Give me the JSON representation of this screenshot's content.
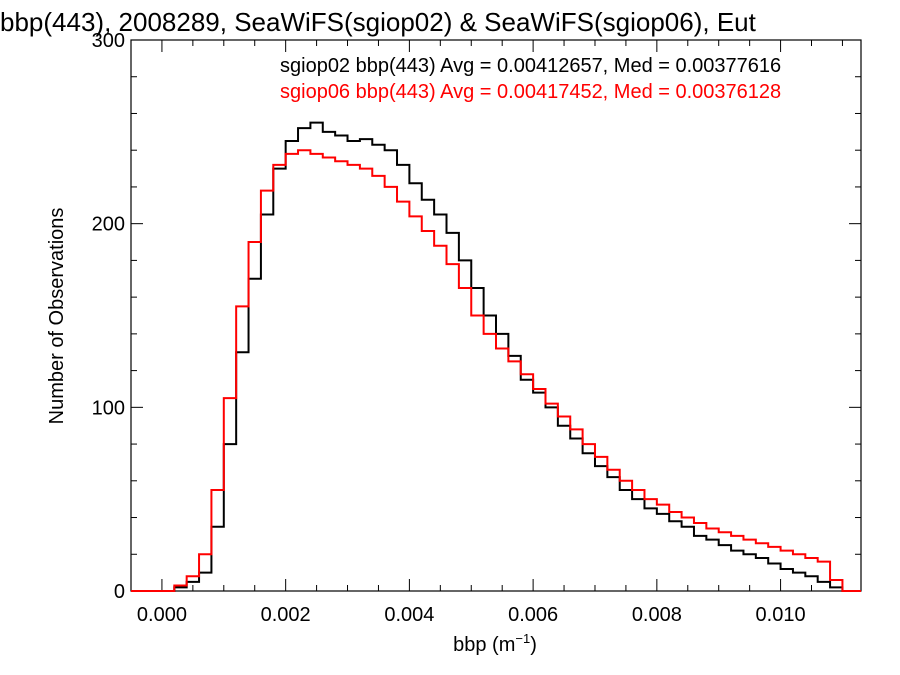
{
  "chart_data": {
    "type": "line",
    "title": "bbp(443), 2008289, SeaWiFS(sgiop02) & SeaWiFS(sgiop06), Eut",
    "xlabel": "bbp (m",
    "xlabel_sup": "−1",
    "xlabel_close": ")",
    "ylabel": "Number of Observations",
    "xlim": [
      -0.0005,
      0.0113
    ],
    "ylim": [
      0,
      300
    ],
    "x_ticks": [
      0.0,
      0.002,
      0.004,
      0.006,
      0.008,
      0.01
    ],
    "x_tick_labels": [
      "0.000",
      "0.002",
      "0.004",
      "0.006",
      "0.008",
      "0.010"
    ],
    "y_ticks": [
      0,
      100,
      200,
      300
    ],
    "y_tick_labels": [
      "0",
      "100",
      "200",
      "300"
    ],
    "grid": false,
    "legend_position": "top-right",
    "series": [
      {
        "name": "sgiop02",
        "legend_text": "sgiop02 bbp(443) Avg = 0.00412657, Med = 0.00377616",
        "color": "#000000",
        "x": [
          0.0,
          0.0002,
          0.0004,
          0.0006,
          0.0008,
          0.001,
          0.0012,
          0.0014,
          0.0016,
          0.0018,
          0.002,
          0.0022,
          0.0024,
          0.0026,
          0.0028,
          0.003,
          0.0032,
          0.0034,
          0.0036,
          0.0038,
          0.004,
          0.0042,
          0.0044,
          0.0046,
          0.0048,
          0.005,
          0.0052,
          0.0054,
          0.0056,
          0.0058,
          0.006,
          0.0062,
          0.0064,
          0.0066,
          0.0068,
          0.007,
          0.0072,
          0.0074,
          0.0076,
          0.0078,
          0.008,
          0.0082,
          0.0084,
          0.0086,
          0.0088,
          0.009,
          0.0092,
          0.0094,
          0.0096,
          0.0098,
          0.01,
          0.0102,
          0.0104,
          0.0106,
          0.0108,
          0.011
        ],
        "y": [
          0,
          2,
          5,
          10,
          35,
          80,
          130,
          170,
          205,
          230,
          245,
          252,
          255,
          250,
          248,
          245,
          246,
          243,
          240,
          232,
          222,
          213,
          205,
          195,
          180,
          165,
          150,
          140,
          128,
          115,
          108,
          100,
          90,
          83,
          75,
          68,
          62,
          55,
          50,
          45,
          42,
          38,
          35,
          30,
          28,
          25,
          22,
          20,
          18,
          15,
          12,
          10,
          8,
          5,
          2,
          0
        ]
      },
      {
        "name": "sgiop06",
        "legend_text": "sgiop06 bbp(443) Avg = 0.00417452, Med = 0.00376128",
        "color": "#ff0000",
        "x": [
          0.0,
          0.0002,
          0.0004,
          0.0006,
          0.0008,
          0.001,
          0.0012,
          0.0014,
          0.0016,
          0.0018,
          0.002,
          0.0022,
          0.0024,
          0.0026,
          0.0028,
          0.003,
          0.0032,
          0.0034,
          0.0036,
          0.0038,
          0.004,
          0.0042,
          0.0044,
          0.0046,
          0.0048,
          0.005,
          0.0052,
          0.0054,
          0.0056,
          0.0058,
          0.006,
          0.0062,
          0.0064,
          0.0066,
          0.0068,
          0.007,
          0.0072,
          0.0074,
          0.0076,
          0.0078,
          0.008,
          0.0082,
          0.0084,
          0.0086,
          0.0088,
          0.009,
          0.0092,
          0.0094,
          0.0096,
          0.0098,
          0.01,
          0.0102,
          0.0104,
          0.0106,
          0.0108,
          0.011
        ],
        "y": [
          0,
          3,
          8,
          20,
          55,
          105,
          155,
          190,
          218,
          232,
          238,
          240,
          238,
          236,
          234,
          232,
          230,
          226,
          220,
          212,
          204,
          196,
          188,
          178,
          165,
          150,
          140,
          132,
          125,
          118,
          110,
          102,
          95,
          88,
          80,
          73,
          66,
          60,
          55,
          50,
          47,
          43,
          40,
          37,
          34,
          32,
          30,
          28,
          26,
          24,
          22,
          20,
          18,
          16,
          6,
          0
        ]
      }
    ]
  }
}
